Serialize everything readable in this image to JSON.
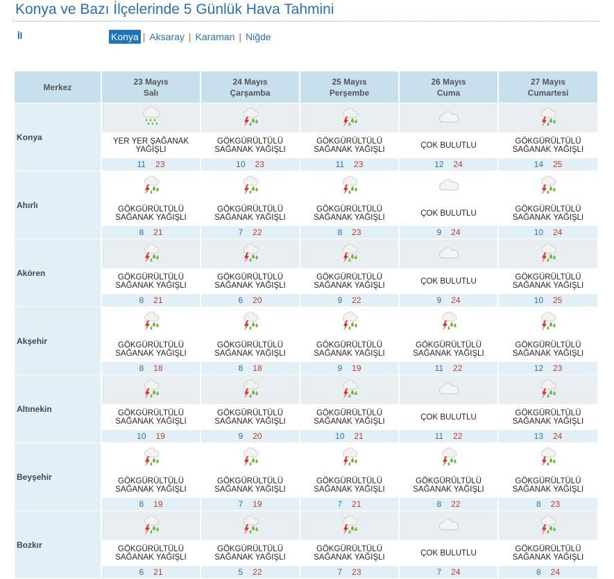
{
  "page": {
    "title": "Konya ve Bazı İlçelerinde 5 Günlük Hava Tahmini",
    "il_label": "İl",
    "cities": [
      "Konya",
      "Aksaray",
      "Karaman",
      "Niğde"
    ],
    "selected_city": "Konya"
  },
  "table": {
    "merkez_label": "Merkez",
    "days": [
      {
        "date": "23 Mayıs",
        "weekday": "Salı"
      },
      {
        "date": "24 Mayıs",
        "weekday": "Çarşamba"
      },
      {
        "date": "25 Mayıs",
        "weekday": "Perşembe"
      },
      {
        "date": "26 Mayıs",
        "weekday": "Cuma"
      },
      {
        "date": "27 Mayıs",
        "weekday": "Cumartesi"
      }
    ],
    "rows": [
      {
        "name": "Konya",
        "forecasts": [
          {
            "icon": "rain-icon",
            "line1": "YER YER ŞAĞANAK",
            "line2": "YAĞIŞLI",
            "min": "11",
            "max": "23"
          },
          {
            "icon": "thunderstorm-icon",
            "line1": "GÖKGÜRÜLTÜLÜ",
            "line2": "SAĞANAK YAĞIŞLI",
            "min": "10",
            "max": "23"
          },
          {
            "icon": "thunderstorm-icon",
            "line1": "GÖKGÜRÜLTÜLÜ",
            "line2": "SAĞANAK YAĞIŞLI",
            "min": "11",
            "max": "23"
          },
          {
            "icon": "cloud-icon",
            "line1": "ÇOK BULUTLU",
            "line2": "",
            "min": "12",
            "max": "24"
          },
          {
            "icon": "thunderstorm-icon",
            "line1": "GÖKGÜRÜLTÜLÜ",
            "line2": "SAĞANAK YAĞIŞLI",
            "min": "14",
            "max": "25"
          }
        ]
      },
      {
        "name": "Ahırlı",
        "forecasts": [
          {
            "icon": "thunderstorm-icon",
            "line1": "GÖKGÜRÜLTÜLÜ",
            "line2": "SAĞANAK YAĞIŞLI",
            "min": "8",
            "max": "21"
          },
          {
            "icon": "thunderstorm-icon",
            "line1": "GÖKGÜRÜLTÜLÜ",
            "line2": "SAĞANAK YAĞIŞLI",
            "min": "7",
            "max": "22"
          },
          {
            "icon": "thunderstorm-icon",
            "line1": "GÖKGÜRÜLTÜLÜ",
            "line2": "SAĞANAK YAĞIŞLI",
            "min": "8",
            "max": "23"
          },
          {
            "icon": "cloud-icon",
            "line1": "ÇOK BULUTLU",
            "line2": "",
            "min": "9",
            "max": "24"
          },
          {
            "icon": "thunderstorm-icon",
            "line1": "GÖKGÜRÜLTÜLÜ",
            "line2": "SAĞANAK YAĞIŞLI",
            "min": "10",
            "max": "24"
          }
        ]
      },
      {
        "name": "Akören",
        "forecasts": [
          {
            "icon": "thunderstorm-icon",
            "line1": "GÖKGÜRÜLTÜLÜ",
            "line2": "SAĞANAK YAĞIŞLI",
            "min": "8",
            "max": "21"
          },
          {
            "icon": "thunderstorm-icon",
            "line1": "GÖKGÜRÜLTÜLÜ",
            "line2": "SAĞANAK YAĞIŞLI",
            "min": "6",
            "max": "20"
          },
          {
            "icon": "thunderstorm-icon",
            "line1": "GÖKGÜRÜLTÜLÜ",
            "line2": "SAĞANAK YAĞIŞLI",
            "min": "9",
            "max": "22"
          },
          {
            "icon": "cloud-icon",
            "line1": "ÇOK BULUTLU",
            "line2": "",
            "min": "9",
            "max": "24"
          },
          {
            "icon": "thunderstorm-icon",
            "line1": "GÖKGÜRÜLTÜLÜ",
            "line2": "SAĞANAK YAĞIŞLI",
            "min": "10",
            "max": "25"
          }
        ]
      },
      {
        "name": "Akşehir",
        "forecasts": [
          {
            "icon": "thunderstorm-icon",
            "line1": "GÖKGÜRÜLTÜLÜ",
            "line2": "SAĞANAK YAĞIŞLI",
            "min": "8",
            "max": "18"
          },
          {
            "icon": "thunderstorm-icon",
            "line1": "GÖKGÜRÜLTÜLÜ",
            "line2": "SAĞANAK YAĞIŞLI",
            "min": "8",
            "max": "18"
          },
          {
            "icon": "thunderstorm-icon",
            "line1": "GÖKGÜRÜLTÜLÜ",
            "line2": "SAĞANAK YAĞIŞLI",
            "min": "9",
            "max": "19"
          },
          {
            "icon": "thunderstorm-icon",
            "line1": "GÖKGÜRÜLTÜLÜ",
            "line2": "SAĞANAK YAĞIŞLI",
            "min": "11",
            "max": "22"
          },
          {
            "icon": "thunderstorm-icon",
            "line1": "GÖKGÜRÜLTÜLÜ",
            "line2": "SAĞANAK YAĞIŞLI",
            "min": "12",
            "max": "23"
          }
        ]
      },
      {
        "name": "Altınekin",
        "forecasts": [
          {
            "icon": "thunderstorm-icon",
            "line1": "GÖKGÜRÜLTÜLÜ",
            "line2": "SAĞANAK YAĞIŞLI",
            "min": "10",
            "max": "19"
          },
          {
            "icon": "thunderstorm-icon",
            "line1": "GÖKGÜRÜLTÜLÜ",
            "line2": "SAĞANAK YAĞIŞLI",
            "min": "9",
            "max": "20"
          },
          {
            "icon": "thunderstorm-icon",
            "line1": "GÖKGÜRÜLTÜLÜ",
            "line2": "SAĞANAK YAĞIŞLI",
            "min": "10",
            "max": "21"
          },
          {
            "icon": "cloud-icon",
            "line1": "ÇOK BULUTLU",
            "line2": "",
            "min": "11",
            "max": "22"
          },
          {
            "icon": "thunderstorm-icon",
            "line1": "GÖKGÜRÜLTÜLÜ",
            "line2": "SAĞANAK YAĞIŞLI",
            "min": "13",
            "max": "24"
          }
        ]
      },
      {
        "name": "Beyşehir",
        "forecasts": [
          {
            "icon": "thunderstorm-icon",
            "line1": "GÖKGÜRÜLTÜLÜ",
            "line2": "SAĞANAK YAĞIŞLI",
            "min": "8",
            "max": "19"
          },
          {
            "icon": "thunderstorm-icon",
            "line1": "GÖKGÜRÜLTÜLÜ",
            "line2": "SAĞANAK YAĞIŞLI",
            "min": "7",
            "max": "19"
          },
          {
            "icon": "thunderstorm-icon",
            "line1": "GÖKGÜRÜLTÜLÜ",
            "line2": "SAĞANAK YAĞIŞLI",
            "min": "7",
            "max": "21"
          },
          {
            "icon": "thunderstorm-icon",
            "line1": "GÖKGÜRÜLTÜLÜ",
            "line2": "SAĞANAK YAĞIŞLI",
            "min": "8",
            "max": "22"
          },
          {
            "icon": "thunderstorm-icon",
            "line1": "GÖKGÜRÜLTÜLÜ",
            "line2": "SAĞANAK YAĞIŞLI",
            "min": "8",
            "max": "23"
          }
        ]
      },
      {
        "name": "Bozkır",
        "forecasts": [
          {
            "icon": "thunderstorm-icon",
            "line1": "GÖKGÜRÜLTÜLÜ",
            "line2": "SAĞANAK YAĞIŞLI",
            "min": "6",
            "max": "21"
          },
          {
            "icon": "thunderstorm-icon",
            "line1": "GÖKGÜRÜLTÜLÜ",
            "line2": "SAĞANAK YAĞIŞLI",
            "min": "5",
            "max": "22"
          },
          {
            "icon": "thunderstorm-icon",
            "line1": "GÖKGÜRÜLTÜLÜ",
            "line2": "SAĞANAK YAĞIŞLI",
            "min": "7",
            "max": "23"
          },
          {
            "icon": "cloud-icon",
            "line1": "ÇOK BULUTLU",
            "line2": "",
            "min": "7",
            "max": "24"
          },
          {
            "icon": "thunderstorm-icon",
            "line1": "GÖKGÜRÜLTÜLÜ",
            "line2": "SAĞANAK YAĞIŞLI",
            "min": "8",
            "max": "24"
          }
        ]
      }
    ]
  },
  "colors": {
    "title": "#2a6fb0",
    "header_bg": "#c8dfee",
    "city_bg": "#e3eff7",
    "temp_min": "#2e6db4",
    "temp_max": "#c0392b",
    "selected_tab": "#1e73be"
  }
}
